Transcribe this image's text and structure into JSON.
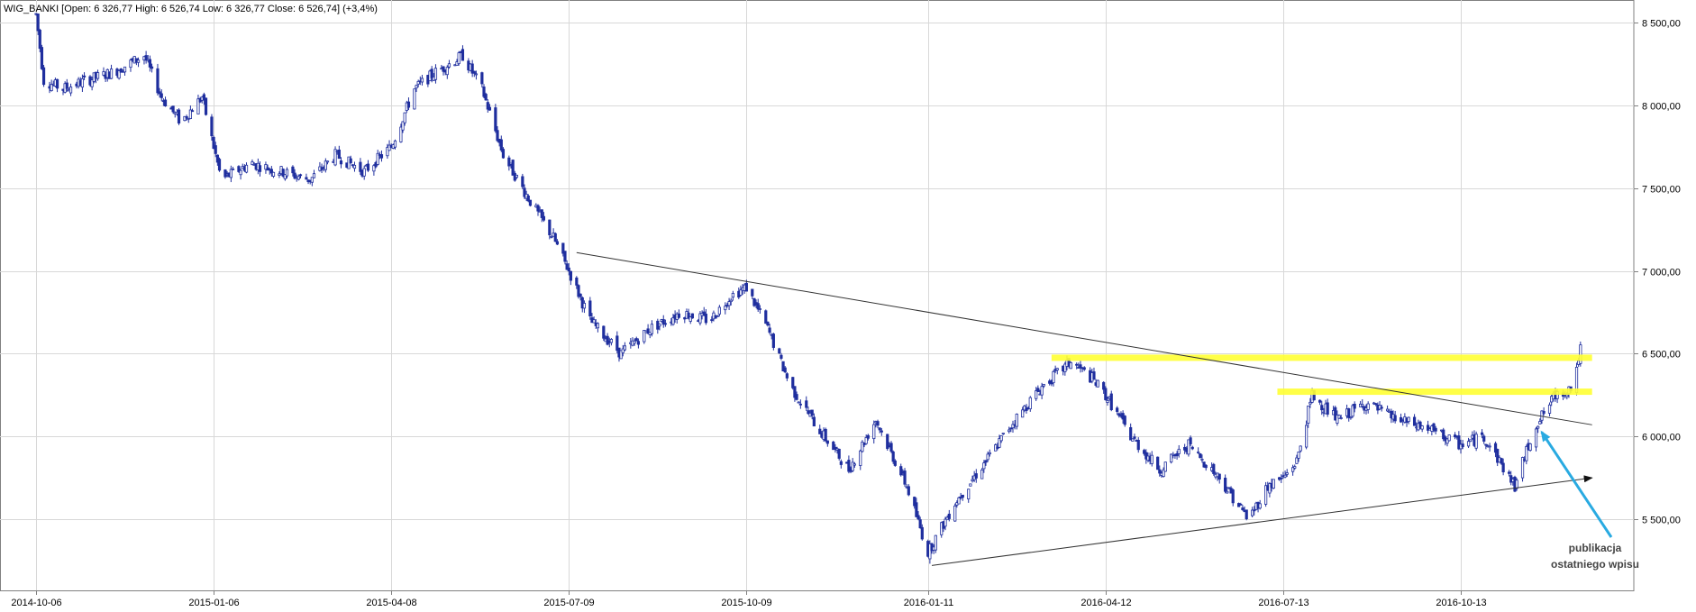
{
  "chart_data": {
    "type": "candlestick",
    "legend": "WIG_BANKI [Open: 6 326,77  High: 6 526,74  Low: 6 326,77  Close: 6 526,74] (+3,4%)",
    "x_ticks": [
      "2014-10-06",
      "2015-01-06",
      "2015-04-08",
      "2015-07-09",
      "2015-10-09",
      "2016-01-11",
      "2016-04-12",
      "2016-07-13",
      "2016-10-13"
    ],
    "y_ticks": [
      "8 500,00",
      "8 000,00",
      "7 500,00",
      "7 000,00",
      "6 500,00",
      "6 000,00",
      "5 500,00"
    ],
    "y_tick_values": [
      8500,
      8000,
      7500,
      7000,
      6500,
      6000,
      5500
    ],
    "ylim": [
      5100,
      8600
    ],
    "x_range": [
      "2014-10-06",
      "2016-12-20"
    ],
    "grid": true,
    "up_color": "#ffffff",
    "down_color": "#1f2e9e",
    "candle_border": "#1f2e9e",
    "price_path": [
      [
        "2014-10-06",
        8550
      ],
      [
        "2014-10-10",
        8150
      ],
      [
        "2014-10-20",
        8100
      ],
      [
        "2014-11-01",
        8150
      ],
      [
        "2014-11-15",
        8200
      ],
      [
        "2014-12-01",
        8300
      ],
      [
        "2014-12-10",
        8050
      ],
      [
        "2014-12-20",
        7900
      ],
      [
        "2014-12-31",
        8050
      ],
      [
        "2015-01-10",
        7550
      ],
      [
        "2015-01-25",
        7650
      ],
      [
        "2015-02-10",
        7600
      ],
      [
        "2015-02-25",
        7550
      ],
      [
        "2015-03-10",
        7700
      ],
      [
        "2015-03-25",
        7600
      ],
      [
        "2015-04-08",
        7750
      ],
      [
        "2015-04-20",
        8100
      ],
      [
        "2015-05-01",
        8200
      ],
      [
        "2015-05-15",
        8300
      ],
      [
        "2015-05-25",
        8100
      ],
      [
        "2015-06-05",
        7700
      ],
      [
        "2015-06-20",
        7400
      ],
      [
        "2015-07-01",
        7200
      ],
      [
        "2015-07-09",
        7000
      ],
      [
        "2015-07-20",
        6700
      ],
      [
        "2015-08-05",
        6500
      ],
      [
        "2015-08-20",
        6650
      ],
      [
        "2015-09-05",
        6750
      ],
      [
        "2015-09-20",
        6700
      ],
      [
        "2015-10-01",
        6850
      ],
      [
        "2015-10-09",
        6900
      ],
      [
        "2015-10-20",
        6650
      ],
      [
        "2015-11-01",
        6300
      ],
      [
        "2015-11-15",
        6050
      ],
      [
        "2015-12-01",
        5800
      ],
      [
        "2015-12-15",
        6100
      ],
      [
        "2015-12-31",
        5700
      ],
      [
        "2016-01-11",
        5300
      ],
      [
        "2016-01-25",
        5600
      ],
      [
        "2016-02-10",
        5850
      ],
      [
        "2016-02-25",
        6100
      ],
      [
        "2016-03-10",
        6300
      ],
      [
        "2016-03-25",
        6450
      ],
      [
        "2016-04-05",
        6350
      ],
      [
        "2016-04-12",
        6250
      ],
      [
        "2016-04-25",
        6000
      ],
      [
        "2016-05-10",
        5800
      ],
      [
        "2016-05-25",
        5950
      ],
      [
        "2016-06-10",
        5750
      ],
      [
        "2016-06-25",
        5500
      ],
      [
        "2016-07-05",
        5700
      ],
      [
        "2016-07-13",
        5750
      ],
      [
        "2016-07-20",
        5850
      ],
      [
        "2016-07-28",
        6250
      ],
      [
        "2016-08-10",
        6100
      ],
      [
        "2016-08-25",
        6200
      ],
      [
        "2016-09-10",
        6100
      ],
      [
        "2016-09-25",
        6050
      ],
      [
        "2016-10-13",
        5950
      ],
      [
        "2016-10-25",
        6000
      ],
      [
        "2016-11-10",
        5700
      ],
      [
        "2016-11-20",
        6050
      ],
      [
        "2016-12-01",
        6250
      ],
      [
        "2016-12-10",
        6300
      ],
      [
        "2016-12-14",
        6527
      ]
    ],
    "trendlines": [
      {
        "from": [
          "2015-07-13",
          7110
        ],
        "to": [
          "2016-12-20",
          6070
        ],
        "arrow": false
      },
      {
        "from": [
          "2016-01-13",
          5220
        ],
        "to": [
          "2016-12-20",
          5750
        ],
        "arrow": true
      }
    ],
    "highlights": [
      {
        "from": "2016-03-15",
        "to": "2016-12-20",
        "value": 6475,
        "color": "#ffff33"
      },
      {
        "from": "2016-07-10",
        "to": "2016-12-20",
        "value": 6270,
        "color": "#ffff33"
      }
    ],
    "annotation": {
      "lines": [
        "publikacja",
        "ostatniego wpisu"
      ],
      "arrow_to": [
        "2016-11-22",
        6070
      ],
      "color": "#29aae1"
    }
  }
}
